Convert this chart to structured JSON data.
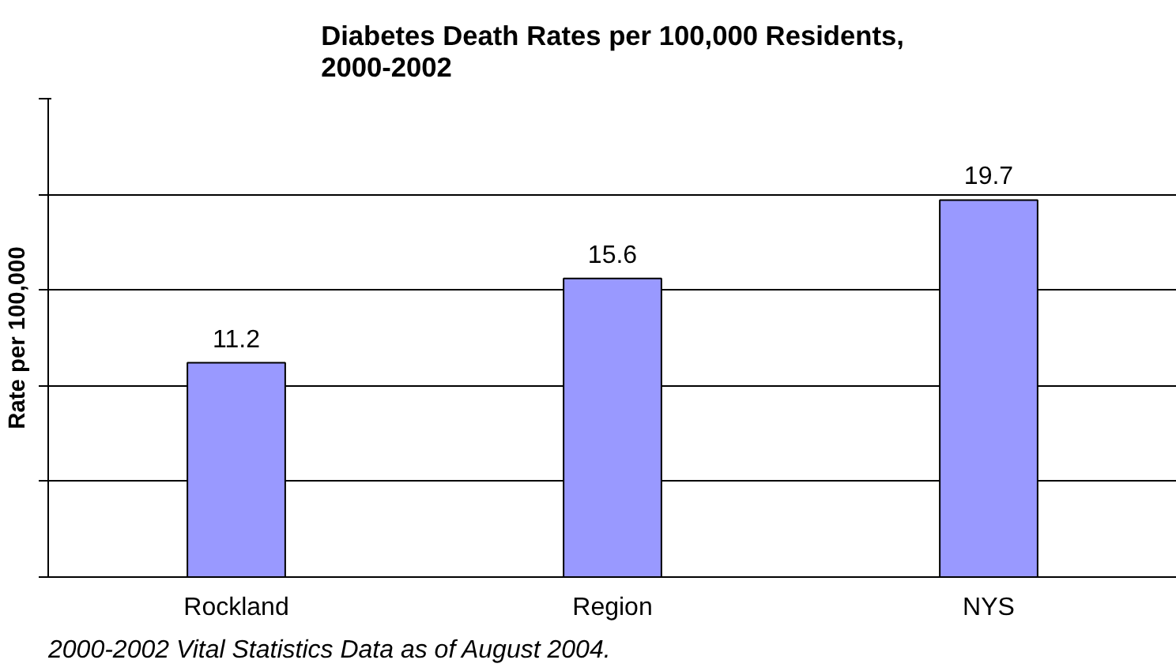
{
  "chart_data": {
    "type": "bar",
    "title": "Diabetes Death Rates per 100,000 Residents,\n2000-2002",
    "ylabel": "Rate per 100,000",
    "categories": [
      "Rockland",
      "Region",
      "NYS"
    ],
    "values": [
      11.2,
      15.6,
      19.7
    ],
    "color": "#9999ff",
    "ylim": [
      0,
      25
    ],
    "yticks": [
      {
        "value": 0,
        "label": null
      },
      {
        "value": 5,
        "label": null
      },
      {
        "value": 10,
        "label": null
      },
      {
        "value": 15,
        "label": null
      },
      {
        "value": 20,
        "label": null
      },
      {
        "value": 25,
        "label": null
      }
    ],
    "tick_labels": "x",
    "grid": "y",
    "data_labels": true,
    "annotations": [
      "2000-2002 Vital Statistics Data as of August 2004."
    ]
  }
}
